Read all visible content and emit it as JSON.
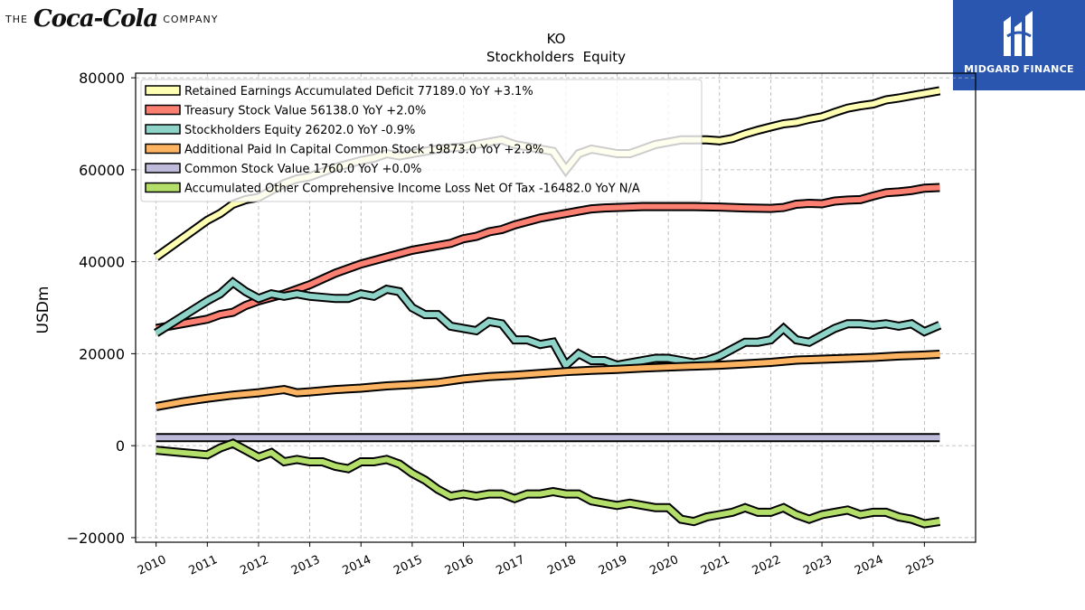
{
  "branding": {
    "left_the": "THE",
    "left_script": "Coca-Cola",
    "left_company": "COMPANY",
    "right_name": "MIDGARD FINANCE",
    "right_color": "#2a56b0"
  },
  "chart_data": {
    "type": "line",
    "title": "KO",
    "subtitle": "Stockholders  Equity",
    "ylabel": "USDm",
    "xlabel": "",
    "ylim": [
      -21000,
      81000
    ],
    "xlim": [
      2009.6,
      2026.0
    ],
    "yticks": [
      -20000,
      0,
      20000,
      40000,
      60000,
      80000
    ],
    "ytick_labels": [
      "−20000",
      "0",
      "20000",
      "40000",
      "60000",
      "80000"
    ],
    "xticks": [
      2010,
      2011,
      2012,
      2013,
      2014,
      2015,
      2016,
      2017,
      2018,
      2019,
      2020,
      2021,
      2022,
      2023,
      2024,
      2025
    ],
    "xtick_labels": [
      "2010",
      "2011",
      "2012",
      "2013",
      "2014",
      "2015",
      "2016",
      "2017",
      "2018",
      "2019",
      "2020",
      "2021",
      "2022",
      "2023",
      "2024",
      "2025"
    ],
    "grid": true,
    "legend_position": "top-left",
    "series": [
      {
        "name": "Retained Earnings Accumulated Deficit",
        "legend_label": "Retained Earnings Accumulated Deficit  77189.0 YoY +3.1%",
        "color": "#ffffb3",
        "x": [
          2010.0,
          2010.5,
          2011.0,
          2011.25,
          2011.5,
          2011.75,
          2012.0,
          2012.25,
          2012.5,
          2012.75,
          2013.0,
          2013.5,
          2014.0,
          2014.25,
          2014.5,
          2014.75,
          2015.0,
          2015.5,
          2016.0,
          2016.25,
          2016.5,
          2016.75,
          2017.0,
          2017.5,
          2017.75,
          2018.0,
          2018.25,
          2018.5,
          2018.75,
          2019.0,
          2019.25,
          2019.5,
          2019.75,
          2020.0,
          2020.25,
          2020.5,
          2020.75,
          2021.0,
          2021.25,
          2021.5,
          2021.75,
          2022.0,
          2022.25,
          2022.5,
          2022.75,
          2023.0,
          2023.25,
          2023.5,
          2023.75,
          2024.0,
          2024.25,
          2024.5,
          2024.75,
          2025.0,
          2025.3
        ],
        "y": [
          41000,
          45000,
          49000,
          50500,
          52500,
          53500,
          54000,
          55500,
          57000,
          58000,
          58500,
          60500,
          62000,
          62500,
          63500,
          63000,
          63500,
          64500,
          65000,
          65500,
          66000,
          66500,
          65500,
          64500,
          64000,
          60000,
          63500,
          64500,
          64000,
          63500,
          63500,
          64500,
          65500,
          66000,
          66500,
          66500,
          66500,
          66300,
          66800,
          67800,
          68600,
          69300,
          70000,
          70300,
          71000,
          71500,
          72500,
          73400,
          73900,
          74300,
          75200,
          75600,
          76100,
          76600,
          77189
        ]
      },
      {
        "name": "Treasury Stock Value",
        "legend_label": "Treasury Stock Value  56138.0 YoY +2.0%",
        "color": "#fb8072",
        "x": [
          2010.0,
          2010.5,
          2011.0,
          2011.25,
          2011.5,
          2011.75,
          2012.0,
          2012.5,
          2013.0,
          2013.5,
          2014.0,
          2014.5,
          2015.0,
          2015.5,
          2015.75,
          2016.0,
          2016.25,
          2016.5,
          2016.75,
          2017.0,
          2017.5,
          2018.0,
          2018.25,
          2018.5,
          2018.75,
          2019.0,
          2019.5,
          2020.0,
          2020.5,
          2021.0,
          2021.5,
          2022.0,
          2022.25,
          2022.5,
          2022.75,
          2023.0,
          2023.25,
          2023.5,
          2023.75,
          2024.0,
          2024.25,
          2024.5,
          2024.75,
          2025.0,
          2025.3
        ],
        "y": [
          25500,
          26500,
          27500,
          28500,
          29000,
          30500,
          31500,
          33000,
          35000,
          37500,
          39500,
          41000,
          42500,
          43500,
          44000,
          45000,
          45500,
          46500,
          47000,
          48000,
          49500,
          50500,
          51000,
          51500,
          51700,
          51800,
          52000,
          52000,
          52000,
          51900,
          51700,
          51600,
          51800,
          52500,
          52700,
          52600,
          53200,
          53400,
          53500,
          54300,
          55000,
          55200,
          55500,
          56000,
          56138
        ]
      },
      {
        "name": "Stockholders Equity",
        "legend_label": "Stockholders Equity  26202.0 YoY -0.9%",
        "color": "#8dd3c7",
        "x": [
          2010.0,
          2010.5,
          2011.0,
          2011.25,
          2011.5,
          2011.75,
          2012.0,
          2012.25,
          2012.5,
          2012.75,
          2013.0,
          2013.5,
          2013.75,
          2014.0,
          2014.25,
          2014.5,
          2014.75,
          2015.0,
          2015.25,
          2015.5,
          2015.75,
          2016.0,
          2016.25,
          2016.5,
          2016.75,
          2017.0,
          2017.25,
          2017.5,
          2017.75,
          2018.0,
          2018.25,
          2018.5,
          2018.75,
          2019.0,
          2019.25,
          2019.5,
          2019.75,
          2020.0,
          2020.25,
          2020.5,
          2020.75,
          2021.0,
          2021.25,
          2021.5,
          2021.75,
          2022.0,
          2022.25,
          2022.5,
          2022.75,
          2023.0,
          2023.25,
          2023.5,
          2023.75,
          2024.0,
          2024.25,
          2024.5,
          2024.75,
          2025.0,
          2025.3
        ],
        "y": [
          24500,
          28000,
          31500,
          33000,
          35500,
          33500,
          32000,
          33000,
          32500,
          33000,
          32500,
          32000,
          32000,
          33000,
          32500,
          34000,
          33500,
          30000,
          28500,
          28500,
          26000,
          25500,
          25000,
          27000,
          26500,
          23000,
          23000,
          22000,
          22500,
          17500,
          20000,
          18500,
          18500,
          17500,
          18000,
          18500,
          19000,
          19000,
          18500,
          18000,
          18500,
          19500,
          21000,
          22500,
          22500,
          23000,
          25500,
          23000,
          22500,
          24000,
          25500,
          26500,
          26500,
          26200,
          26500,
          26000,
          26500,
          24800,
          26202
        ]
      },
      {
        "name": "Additional Paid In Capital Common Stock",
        "legend_label": "Additional Paid In Capital Common Stock  19873.0 YoY +2.9%",
        "color": "#fdb462",
        "x": [
          2010.0,
          2010.5,
          2011.0,
          2011.5,
          2012.0,
          2012.5,
          2012.75,
          2013.0,
          2013.5,
          2014.0,
          2014.5,
          2015.0,
          2015.5,
          2016.0,
          2016.5,
          2017.0,
          2017.5,
          2018.0,
          2018.5,
          2019.0,
          2019.5,
          2020.0,
          2020.5,
          2021.0,
          2021.5,
          2022.0,
          2022.5,
          2023.0,
          2023.5,
          2024.0,
          2024.5,
          2025.0,
          2025.3
        ],
        "y": [
          8500,
          9500,
          10300,
          11000,
          11500,
          12200,
          11500,
          11700,
          12200,
          12500,
          13000,
          13300,
          13700,
          14500,
          15000,
          15300,
          15700,
          16100,
          16400,
          16600,
          16900,
          17100,
          17300,
          17500,
          17800,
          18100,
          18600,
          18800,
          19000,
          19200,
          19500,
          19700,
          19873
        ]
      },
      {
        "name": "Common Stock Value",
        "legend_label": "Common Stock Value  1760.0 YoY +0.0%",
        "color": "#bebada",
        "x": [
          2010.0,
          2025.3
        ],
        "y": [
          1760,
          1760
        ]
      },
      {
        "name": "Accumulated Other Comprehensive Income Loss Net Of Tax",
        "legend_label": "Accumulated Other Comprehensive Income Loss Net Of Tax  -16482.0 YoY N/A",
        "color": "#b3de69",
        "x": [
          2010.0,
          2010.5,
          2011.0,
          2011.25,
          2011.5,
          2011.75,
          2012.0,
          2012.25,
          2012.5,
          2012.75,
          2013.0,
          2013.25,
          2013.5,
          2013.75,
          2014.0,
          2014.25,
          2014.5,
          2014.75,
          2015.0,
          2015.25,
          2015.5,
          2015.75,
          2016.0,
          2016.25,
          2016.5,
          2016.75,
          2017.0,
          2017.25,
          2017.5,
          2017.75,
          2018.0,
          2018.25,
          2018.5,
          2018.75,
          2019.0,
          2019.25,
          2019.5,
          2019.75,
          2020.0,
          2020.25,
          2020.5,
          2020.75,
          2021.0,
          2021.25,
          2021.5,
          2021.75,
          2022.0,
          2022.25,
          2022.5,
          2022.75,
          2023.0,
          2023.25,
          2023.5,
          2023.75,
          2024.0,
          2024.25,
          2024.5,
          2024.75,
          2025.0,
          2025.3
        ],
        "y": [
          -1000,
          -1500,
          -2000,
          -500,
          500,
          -1000,
          -2500,
          -1500,
          -3500,
          -3000,
          -3500,
          -3500,
          -4500,
          -5000,
          -3500,
          -3500,
          -3000,
          -4000,
          -6000,
          -7500,
          -9500,
          -11000,
          -10500,
          -11000,
          -10500,
          -10500,
          -11500,
          -10500,
          -10500,
          -10000,
          -10500,
          -10500,
          -12000,
          -12500,
          -13000,
          -12500,
          -13000,
          -13500,
          -13500,
          -16000,
          -16500,
          -15500,
          -15000,
          -14500,
          -13500,
          -14500,
          -14500,
          -13500,
          -15000,
          -16000,
          -15000,
          -14500,
          -14000,
          -15000,
          -14500,
          -14500,
          -15500,
          -16000,
          -17000,
          -16482
        ]
      }
    ]
  }
}
